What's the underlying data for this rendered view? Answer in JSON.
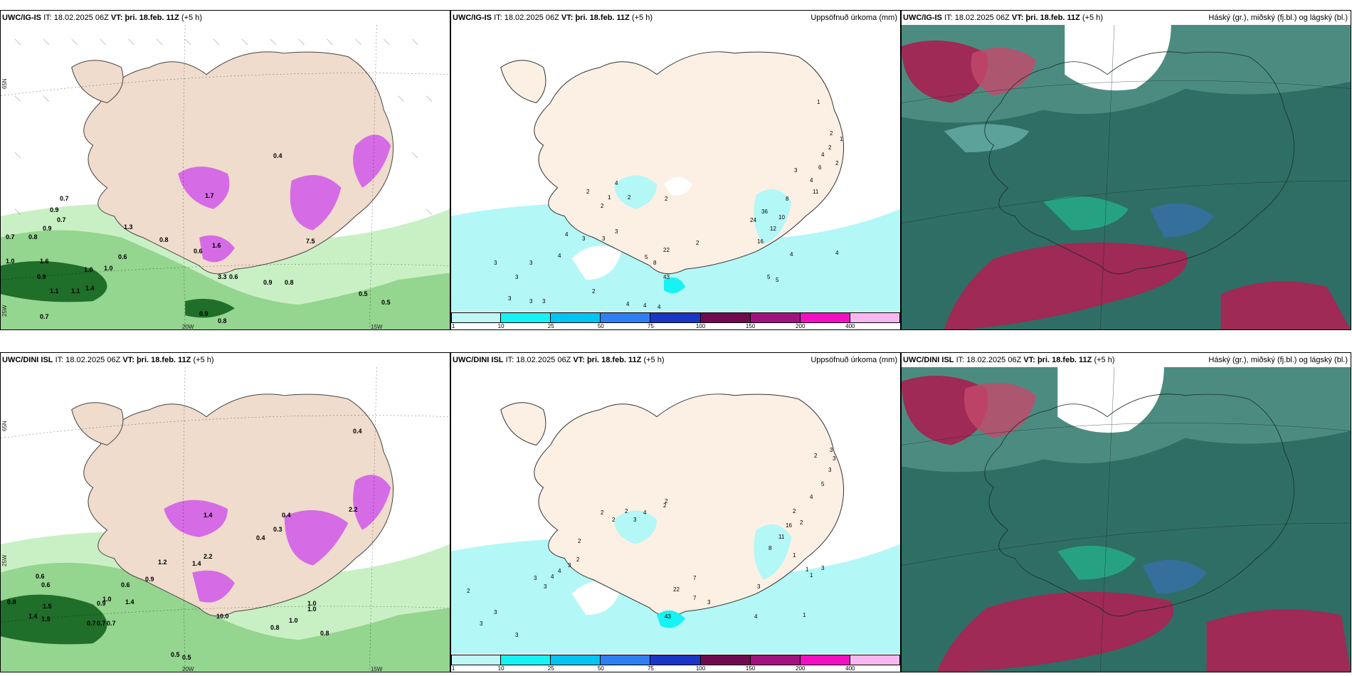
{
  "rows": [
    {
      "model": "UWC/IG-IS",
      "it_label": "IT:",
      "it_value": "18.02.2025 06Z",
      "vt_label": "VT:",
      "vt_value": "þri. 18.feb. 11Z",
      "lead": "(+5 h)",
      "precip_title": "Uppsöfnuð úrkoma (mm)",
      "cloud_title": "Háský (gr.), miðský (fj.bl.) og lágský (bl.)",
      "precip_values": [
        "1",
        "2",
        "2",
        "4",
        "2",
        "2",
        "3",
        "3",
        "4",
        "3",
        "3",
        "3",
        "5",
        "8",
        "22",
        "43",
        "2",
        "2",
        "4",
        "3",
        "3",
        "3",
        "2",
        "3",
        "4",
        "4",
        "4",
        "2",
        "4",
        "5",
        "5",
        "4",
        "1",
        "2",
        "1",
        "4",
        "6",
        "4",
        "3",
        "11",
        "8",
        "10",
        "12",
        "16",
        "24",
        "36"
      ],
      "wind_values": [
        "0.7",
        "0.9",
        "0.8",
        "0.9",
        "0.7",
        "0.7",
        "1.0",
        "1.6",
        "0.9",
        "1.1",
        "1.4",
        "1.0",
        "1.1",
        "0.6",
        "0.8",
        "0.4",
        "1.7",
        "1.3",
        "0.6",
        "1.6",
        "3.3",
        "7.5",
        "0.6",
        "0.9",
        "1.0",
        "0.5",
        "0.5",
        "0.7",
        "0.8",
        "0.9",
        "0.8"
      ]
    },
    {
      "model": "UWC/DINI ISL",
      "it_label": "IT:",
      "it_value": "18.02.2025 06Z",
      "vt_label": "VT:",
      "vt_value": "þri. 18.feb. 11Z",
      "lead": "(+5 h)",
      "precip_title": "Uppsöfnuð úrkoma (mm)",
      "cloud_title": "Háský (gr.), miðský (fj.bl.) og lágský (bl.)",
      "precip_values": [
        "2",
        "3",
        "3",
        "1",
        "2",
        "2",
        "3",
        "4",
        "4",
        "3",
        "3",
        "3",
        "2",
        "2",
        "3",
        "7",
        "3",
        "22",
        "43",
        "1",
        "4",
        "3",
        "2",
        "2",
        "3",
        "5",
        "3",
        "7",
        "2",
        "1",
        "1",
        "4",
        "3",
        "2",
        "2",
        "3",
        "8",
        "11",
        "16",
        "2",
        "4"
      ],
      "wind_values": [
        "0.6",
        "0.6",
        "0.8",
        "1.4",
        "1.0",
        "1.5",
        "0.7",
        "0.7",
        "1.4",
        "0.9",
        "0.6",
        "0.9",
        "1.4",
        "1.2",
        "2.2",
        "10.0",
        "0.5",
        "0.5",
        "0.8",
        "1.0",
        "0.8",
        "1.0",
        "0.3",
        "0.4",
        "2.2",
        "1.0",
        "0.4",
        "0.7",
        "1.5",
        "1.4",
        "0.4"
      ]
    }
  ],
  "colorbar": {
    "ticks": [
      "1",
      "10",
      "25",
      "50",
      "75",
      "100",
      "150",
      "200",
      "400"
    ],
    "colors": [
      "#bff7f7",
      "#17f2f2",
      "#00c4f2",
      "#2f7ff2",
      "#1a36c6",
      "#6f0a4f",
      "#a2127f",
      "#f210c2",
      "#f7b8f0"
    ]
  },
  "lon_labels": [
    "20W",
    "15W"
  ],
  "lat_labels": [
    "65N",
    "25W"
  ],
  "colors": {
    "land": "#fbf0e3",
    "sea_precip": "#b3f7f7",
    "green_light": "#c9f0c4",
    "green_mid": "#8ed18a",
    "green_dark": "#1f6e2a",
    "magenta": "#d66be6",
    "cloud_base": "#2f6e64",
    "cloud_red": "#9e2a55",
    "cloud_white": "#ffffff"
  }
}
